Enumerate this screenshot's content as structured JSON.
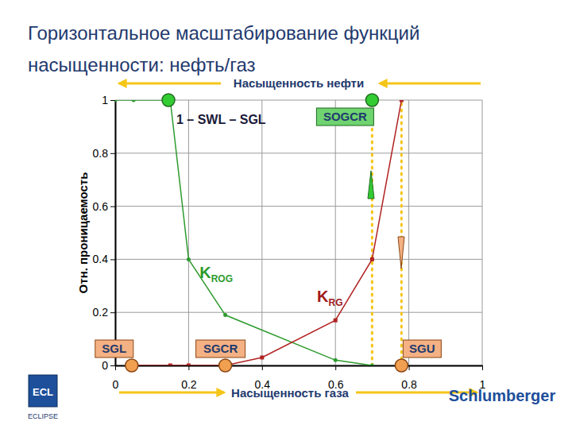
{
  "chart_data": {
    "type": "line",
    "title": "Горизонтальное масштабирование функций насыщенности: нефть/газ",
    "x_label": "Насыщенность газа",
    "y_label": "Отн. проницаемость",
    "top_label": "Насыщенность нефти",
    "xlim": [
      0,
      1
    ],
    "ylim": [
      0,
      1
    ],
    "xticks": [
      0,
      0.2,
      0.4,
      0.6,
      0.8,
      1
    ],
    "yticks": [
      0,
      0.2,
      0.4,
      0.6,
      0.8,
      1
    ],
    "grid": true,
    "series": [
      {
        "name": "KROG",
        "color": "#2e9b2e",
        "marker": "circle",
        "line_style": "solid",
        "x": [
          0,
          0.05,
          0.15,
          0.2,
          0.3,
          0.6,
          0.7
        ],
        "values": [
          1,
          1,
          1,
          0.4,
          0.19,
          0.02,
          0
        ]
      },
      {
        "name": "KRG",
        "color": "#b22222",
        "marker": "square",
        "line_style": "solid",
        "x": [
          0.05,
          0.15,
          0.2,
          0.3,
          0.4,
          0.6,
          0.7,
          0.78
        ],
        "values": [
          0,
          0,
          0,
          0,
          0.03,
          0.17,
          0.4,
          1
        ]
      }
    ],
    "markers": [
      {
        "label": "1 – SWL – SGL",
        "x": 0.145,
        "y": 1,
        "color": "#33cc33"
      },
      {
        "label": "SOGCR",
        "x": 0.7,
        "y": 1,
        "color": "#33cc33"
      },
      {
        "label": "SGL",
        "x": 0.045,
        "y": 0,
        "color": "#f0a050"
      },
      {
        "label": "SGCR",
        "x": 0.3,
        "y": 0,
        "color": "#f0a050"
      },
      {
        "label": "SGU",
        "x": 0.78,
        "y": 0,
        "color": "#f0a050"
      }
    ],
    "vlines": [
      0.7,
      0.78
    ],
    "logos": [
      "ECL",
      "ECLIPSE",
      "Schlumberger"
    ]
  }
}
